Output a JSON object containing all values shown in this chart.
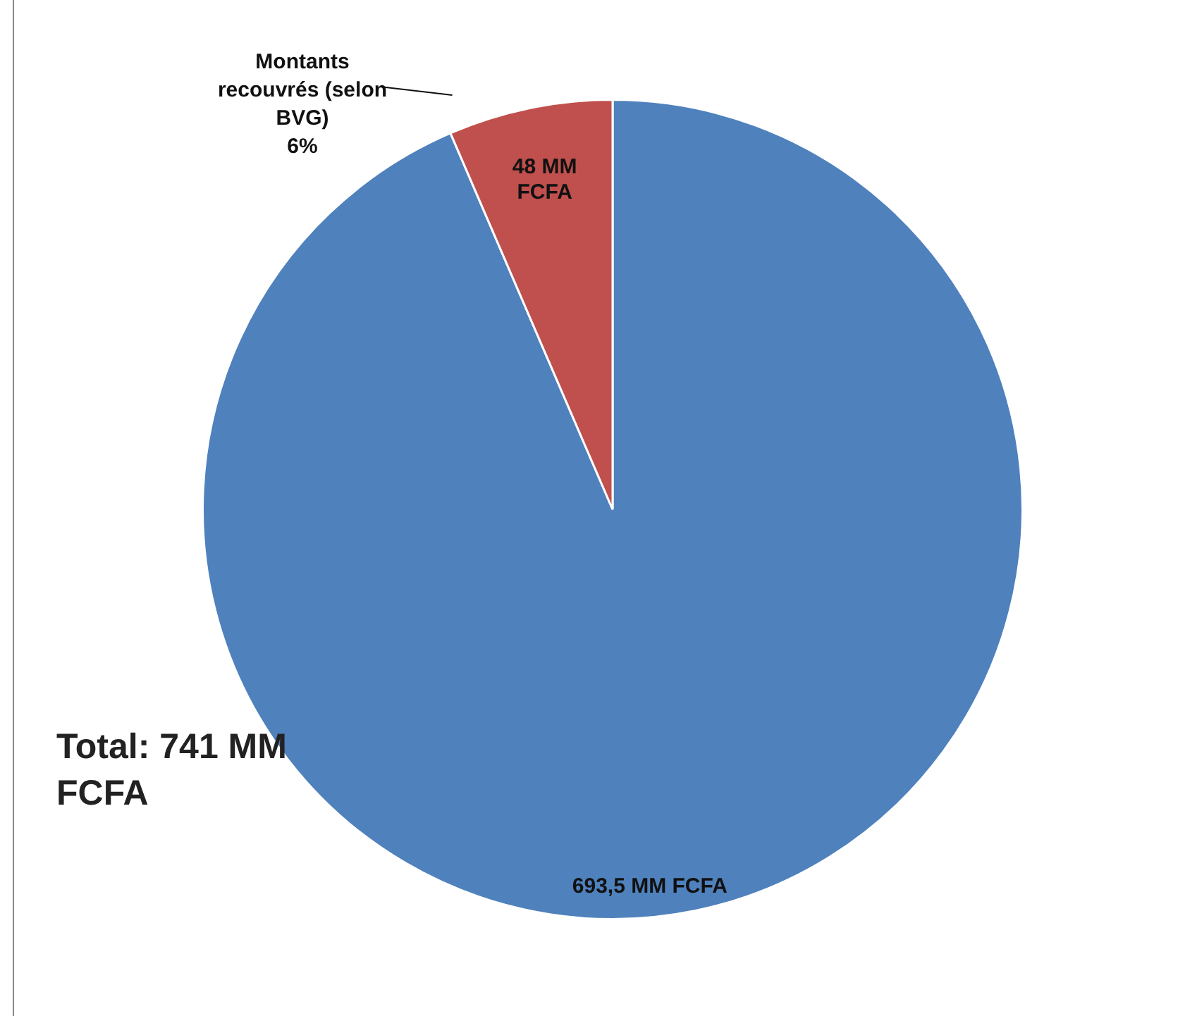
{
  "chart_data": {
    "type": "pie",
    "categories": [
      null,
      "Montants recouvrés (selon BVG)"
    ],
    "values": [
      693.5,
      48
    ],
    "colors": [
      "#4f81bd",
      "#c0504d"
    ],
    "value_labels": [
      "693,5 MM FCFA",
      "48 MM FCFA"
    ],
    "annotations": [
      {
        "text": "6%",
        "x": "Montants recouvrés (selon BVG)"
      },
      "Total: 741 MM FCFA"
    ],
    "legend": false
  }
}
